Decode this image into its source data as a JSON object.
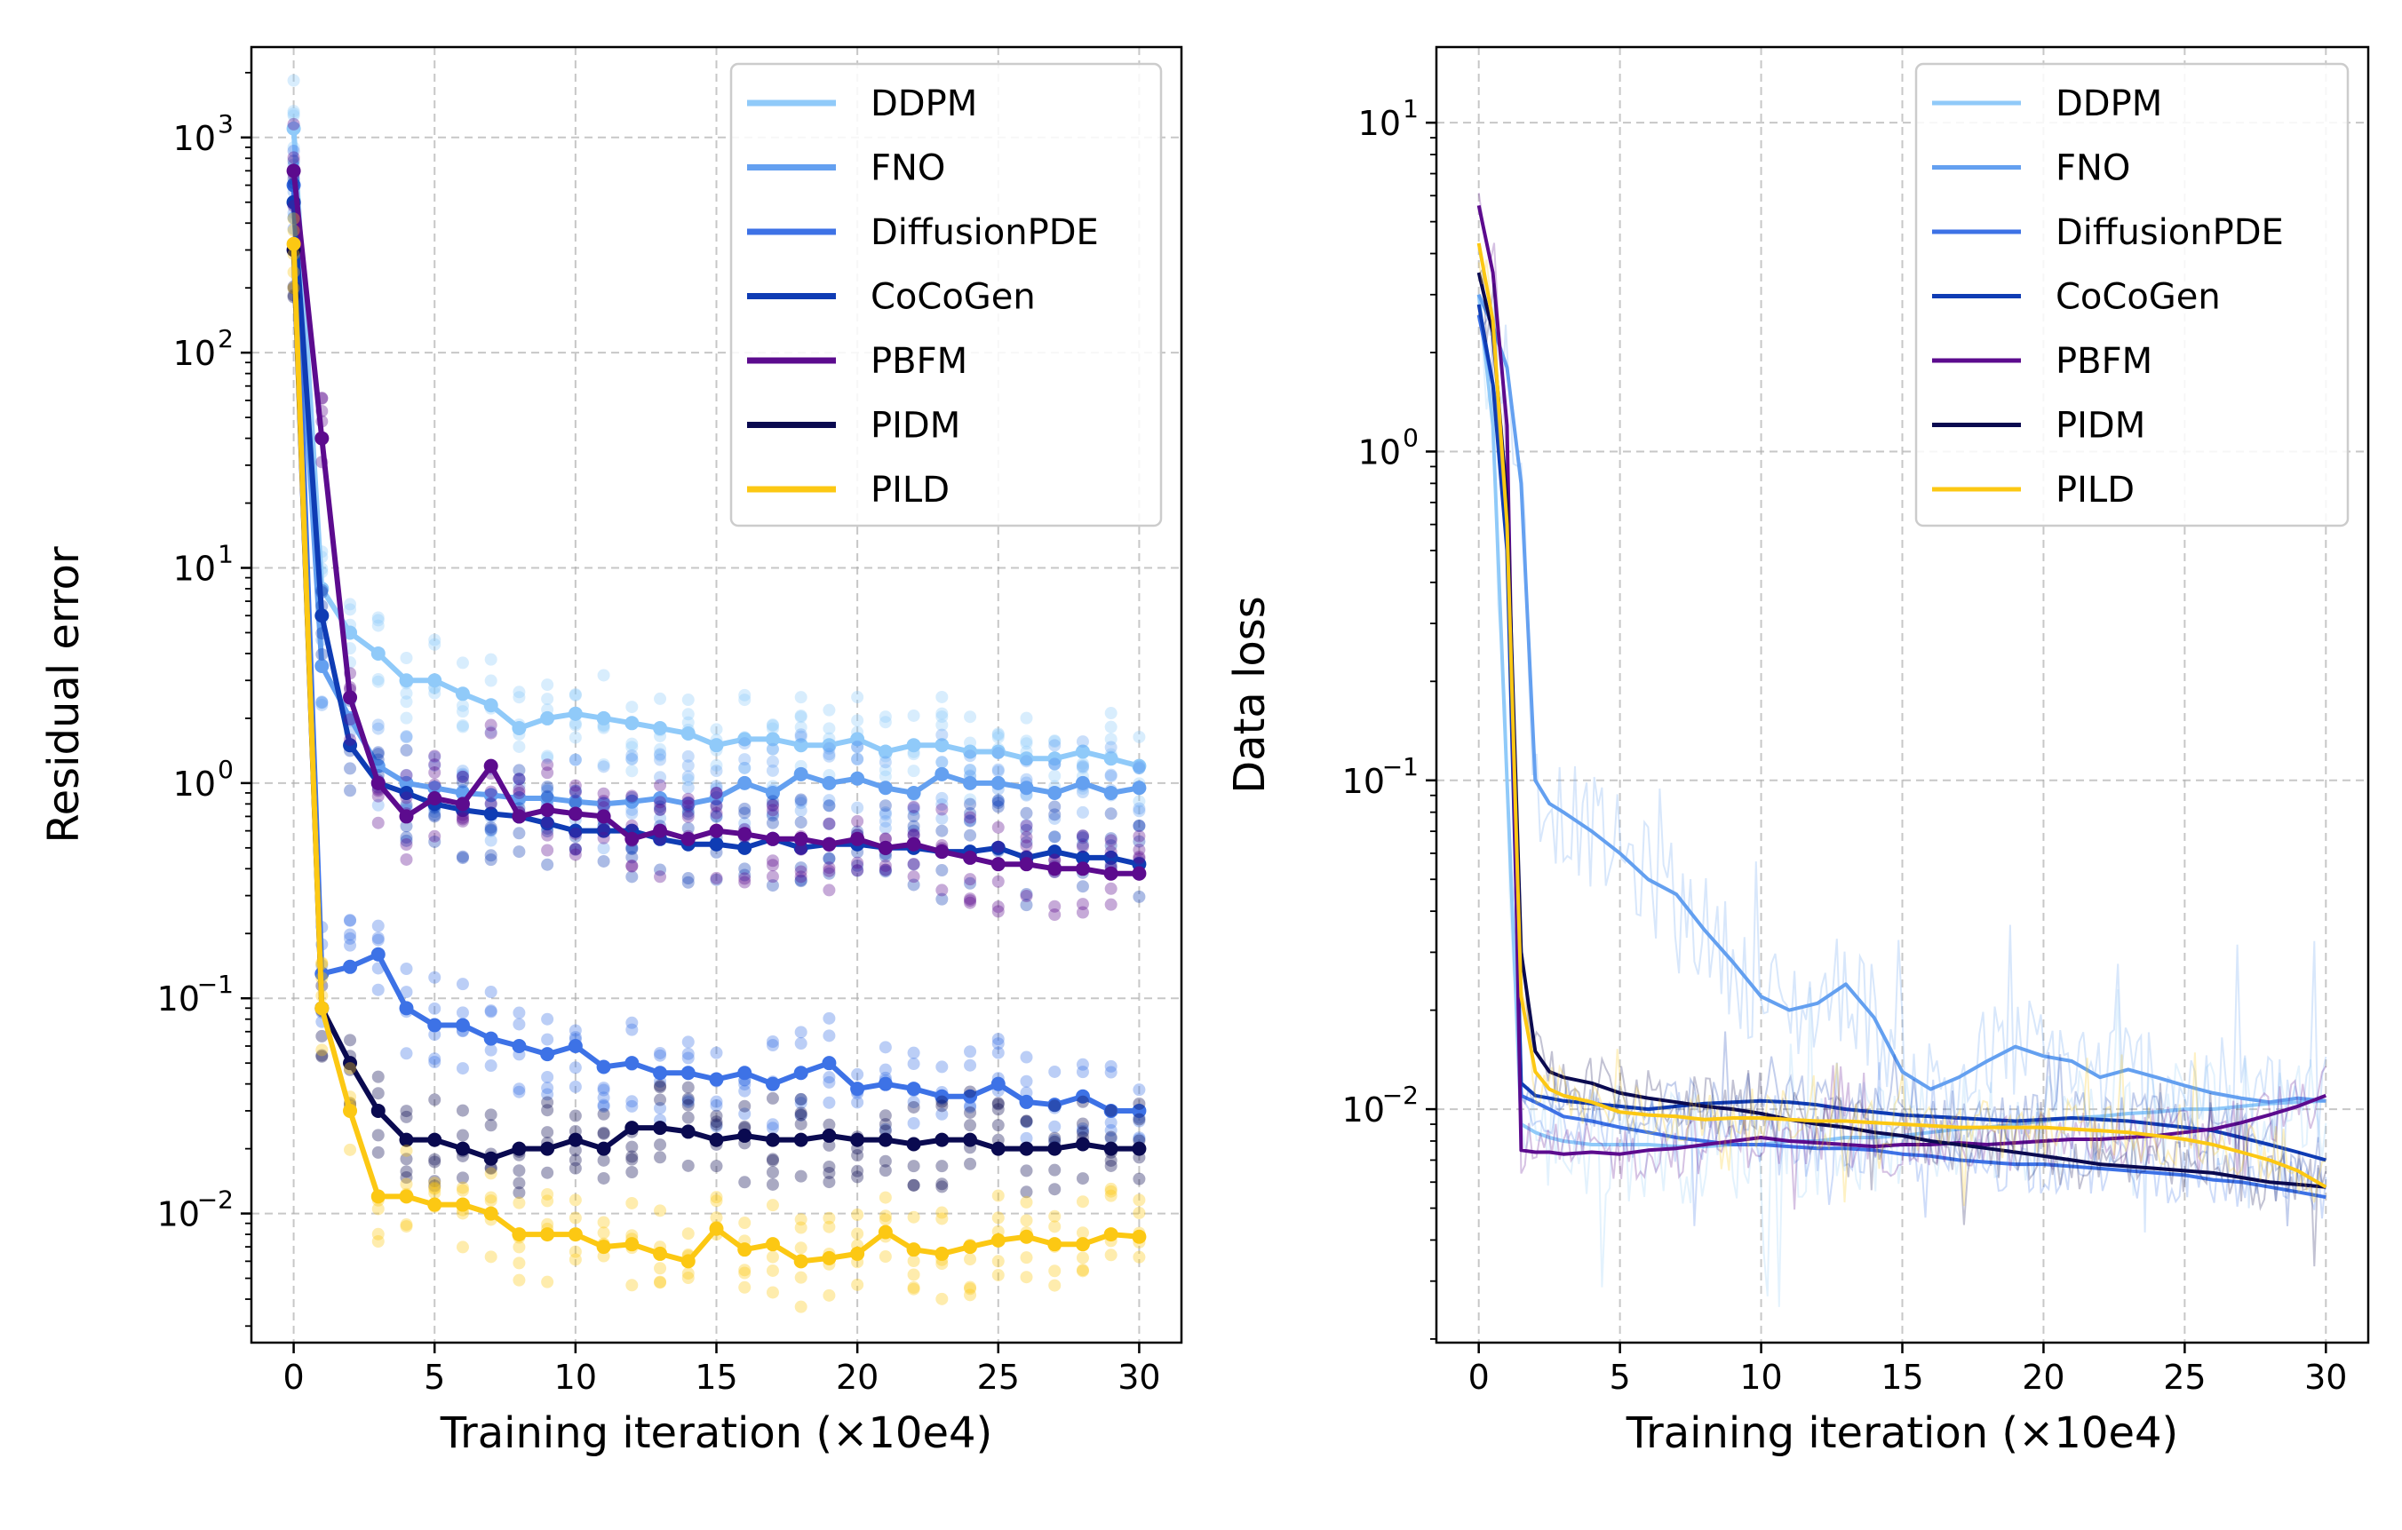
{
  "chart_data": [
    {
      "type": "line",
      "id": "residual",
      "title": "",
      "xlabel": "Training iteration (×10e4)",
      "ylabel": "Residual error",
      "yscale": "log",
      "xlim": [
        -1.5,
        31.5
      ],
      "ylim_exp": [
        -2.6,
        3.42
      ],
      "xticks": [
        0,
        5,
        10,
        15,
        20,
        25,
        30
      ],
      "xtick_labels": [
        "0",
        "5",
        "10",
        "15",
        "20",
        "25",
        "30"
      ],
      "ytick_exps": [
        -2,
        -1,
        0,
        1,
        2,
        3
      ],
      "ytick_labels": [
        "10",
        "10",
        "10",
        "10",
        "10",
        "10"
      ],
      "ytick_sups": [
        "−2",
        "−1",
        "0",
        "1",
        "2",
        "3"
      ],
      "grid": true,
      "legend": "top-right",
      "x": [
        0,
        1,
        2,
        3,
        4,
        5,
        6,
        7,
        8,
        9,
        10,
        11,
        12,
        13,
        14,
        15,
        16,
        17,
        18,
        19,
        20,
        21,
        22,
        23,
        24,
        25,
        26,
        27,
        28,
        29,
        30
      ],
      "series": [
        {
          "name": "DDPM",
          "color": "#90CAF9",
          "values": [
            1100,
            8,
            5,
            4,
            3,
            3,
            2.6,
            2.3,
            1.8,
            2,
            2.1,
            2,
            1.9,
            1.8,
            1.7,
            1.5,
            1.6,
            1.6,
            1.5,
            1.5,
            1.6,
            1.4,
            1.5,
            1.5,
            1.4,
            1.4,
            1.3,
            1.3,
            1.4,
            1.3,
            1.2
          ]
        },
        {
          "name": "FNO",
          "color": "#64A0F0",
          "values": [
            500,
            3.5,
            2,
            1.2,
            1,
            0.95,
            0.9,
            0.88,
            0.85,
            0.85,
            0.82,
            0.8,
            0.82,
            0.85,
            0.8,
            0.85,
            1,
            0.9,
            1.1,
            1,
            1.05,
            0.95,
            0.9,
            1.1,
            1,
            1,
            0.95,
            0.9,
            1,
            0.9,
            0.95
          ]
        },
        {
          "name": "DiffusionPDE",
          "color": "#3D72E6",
          "values": [
            600,
            0.13,
            0.14,
            0.16,
            0.09,
            0.075,
            0.075,
            0.065,
            0.06,
            0.055,
            0.06,
            0.048,
            0.05,
            0.045,
            0.045,
            0.042,
            0.045,
            0.04,
            0.045,
            0.05,
            0.038,
            0.04,
            0.038,
            0.035,
            0.035,
            0.04,
            0.033,
            0.032,
            0.035,
            0.03,
            0.03
          ]
        },
        {
          "name": "CoCoGen",
          "color": "#0F3CB4",
          "values": [
            500,
            6,
            1.5,
            1,
            0.9,
            0.8,
            0.75,
            0.72,
            0.7,
            0.65,
            0.6,
            0.6,
            0.6,
            0.55,
            0.52,
            0.52,
            0.5,
            0.55,
            0.5,
            0.52,
            0.52,
            0.5,
            0.5,
            0.48,
            0.48,
            0.5,
            0.45,
            0.48,
            0.45,
            0.45,
            0.42
          ]
        },
        {
          "name": "PBFM",
          "color": "#5C0B8E",
          "values": [
            700,
            40,
            2.5,
            1,
            0.7,
            0.85,
            0.8,
            1.2,
            0.7,
            0.75,
            0.72,
            0.7,
            0.55,
            0.6,
            0.55,
            0.6,
            0.58,
            0.55,
            0.55,
            0.52,
            0.55,
            0.5,
            0.52,
            0.48,
            0.45,
            0.42,
            0.42,
            0.4,
            0.4,
            0.38,
            0.38
          ]
        },
        {
          "name": "PIDM",
          "color": "#0A0A50",
          "values": [
            300,
            0.09,
            0.05,
            0.03,
            0.022,
            0.022,
            0.02,
            0.018,
            0.02,
            0.02,
            0.022,
            0.02,
            0.025,
            0.025,
            0.024,
            0.022,
            0.023,
            0.022,
            0.022,
            0.023,
            0.022,
            0.022,
            0.021,
            0.022,
            0.022,
            0.02,
            0.02,
            0.02,
            0.021,
            0.02,
            0.02
          ]
        },
        {
          "name": "PILD",
          "color": "#FCC813",
          "values": [
            320,
            0.09,
            0.03,
            0.012,
            0.012,
            0.011,
            0.011,
            0.01,
            0.008,
            0.008,
            0.008,
            0.007,
            0.0072,
            0.0065,
            0.006,
            0.0085,
            0.0068,
            0.0072,
            0.006,
            0.0062,
            0.0065,
            0.0082,
            0.0068,
            0.0065,
            0.007,
            0.0075,
            0.0078,
            0.0072,
            0.0072,
            0.008,
            0.0078
          ]
        }
      ]
    },
    {
      "type": "line",
      "id": "dataloss",
      "title": "",
      "xlabel": "Training iteration (×10e4)",
      "ylabel": "Data loss",
      "yscale": "log",
      "xlim": [
        -1.5,
        31.5
      ],
      "ylim_exp": [
        -2.71,
        1.23
      ],
      "xticks": [
        0,
        5,
        10,
        15,
        20,
        25,
        30
      ],
      "xtick_labels": [
        "0",
        "5",
        "10",
        "15",
        "20",
        "25",
        "30"
      ],
      "ytick_exps": [
        -2,
        -1,
        0,
        1
      ],
      "ytick_labels": [
        "10",
        "10",
        "10",
        "10"
      ],
      "ytick_sups": [
        "−2",
        "−1",
        "0",
        "1"
      ],
      "grid": true,
      "legend": "top-right",
      "x": [
        0,
        0.5,
        1,
        1.5,
        2,
        2.5,
        3,
        4,
        5,
        6,
        7,
        8,
        9,
        10,
        11,
        12,
        13,
        14,
        15,
        16,
        17,
        18,
        19,
        20,
        21,
        22,
        23,
        24,
        25,
        26,
        27,
        28,
        29,
        30
      ],
      "series": [
        {
          "name": "DDPM",
          "color": "#90CAF9",
          "values": [
            3,
            1.2,
            0.1,
            0.009,
            0.0085,
            0.0082,
            0.008,
            0.0078,
            0.0078,
            0.0078,
            0.0077,
            0.0077,
            0.0078,
            0.0078,
            0.008,
            0.008,
            0.0082,
            0.0082,
            0.0083,
            0.0085,
            0.0087,
            0.0088,
            0.009,
            0.0092,
            0.0094,
            0.0095,
            0.0097,
            0.0098,
            0.01,
            0.01,
            0.0102,
            0.0104,
            0.0105,
            0.0106
          ]
        },
        {
          "name": "FNO",
          "color": "#64A0F0",
          "values": [
            3,
            2.4,
            1.8,
            0.8,
            0.1,
            0.085,
            0.08,
            0.07,
            0.06,
            0.05,
            0.045,
            0.035,
            0.028,
            0.022,
            0.02,
            0.021,
            0.024,
            0.019,
            0.013,
            0.0115,
            0.0125,
            0.014,
            0.0155,
            0.0145,
            0.014,
            0.0125,
            0.0132,
            0.0125,
            0.0118,
            0.0112,
            0.0108,
            0.0105,
            0.0108,
            0.0106
          ]
        },
        {
          "name": "DiffusionPDE",
          "color": "#3D72E6",
          "values": [
            2.6,
            1.6,
            0.8,
            0.011,
            0.0105,
            0.01,
            0.0095,
            0.0092,
            0.0088,
            0.0085,
            0.0082,
            0.008,
            0.0078,
            0.0078,
            0.0077,
            0.0076,
            0.0076,
            0.0075,
            0.0073,
            0.0072,
            0.007,
            0.0069,
            0.0068,
            0.0068,
            0.0067,
            0.0066,
            0.0065,
            0.0064,
            0.0063,
            0.0061,
            0.006,
            0.0058,
            0.0056,
            0.0054
          ]
        },
        {
          "name": "CoCoGen",
          "color": "#0F3CB4",
          "values": [
            2.8,
            1.6,
            0.5,
            0.012,
            0.011,
            0.0108,
            0.0106,
            0.0104,
            0.0102,
            0.01,
            0.0102,
            0.0104,
            0.0105,
            0.0106,
            0.0105,
            0.0103,
            0.01,
            0.0098,
            0.0096,
            0.0095,
            0.0094,
            0.0093,
            0.0092,
            0.0093,
            0.0094,
            0.0093,
            0.0092,
            0.009,
            0.0088,
            0.0086,
            0.0082,
            0.0078,
            0.0074,
            0.007
          ]
        },
        {
          "name": "PBFM",
          "color": "#5C0B8E",
          "values": [
            5.6,
            3.5,
            1.2,
            0.0075,
            0.0074,
            0.0074,
            0.0073,
            0.0074,
            0.0073,
            0.0075,
            0.0076,
            0.0078,
            0.008,
            0.0082,
            0.008,
            0.0079,
            0.0078,
            0.0077,
            0.0078,
            0.0078,
            0.0079,
            0.0078,
            0.0079,
            0.008,
            0.0081,
            0.0081,
            0.0082,
            0.0083,
            0.0085,
            0.0087,
            0.0091,
            0.0096,
            0.0102,
            0.011
          ]
        },
        {
          "name": "PIDM",
          "color": "#0A0A50",
          "values": [
            3.5,
            2.3,
            0.7,
            0.03,
            0.015,
            0.013,
            0.0125,
            0.012,
            0.0112,
            0.0108,
            0.0105,
            0.0102,
            0.01,
            0.0097,
            0.0093,
            0.009,
            0.0088,
            0.0085,
            0.0083,
            0.008,
            0.0078,
            0.0076,
            0.0074,
            0.0072,
            0.007,
            0.0068,
            0.0067,
            0.0066,
            0.0065,
            0.0064,
            0.0062,
            0.006,
            0.0059,
            0.0058
          ]
        },
        {
          "name": "PILD",
          "color": "#FCC813",
          "values": [
            4.3,
            2.5,
            0.6,
            0.022,
            0.013,
            0.0115,
            0.011,
            0.0105,
            0.0098,
            0.0096,
            0.0095,
            0.0093,
            0.0094,
            0.0094,
            0.0093,
            0.0092,
            0.0092,
            0.0091,
            0.009,
            0.0089,
            0.0088,
            0.0088,
            0.0088,
            0.0088,
            0.0087,
            0.0086,
            0.0085,
            0.0083,
            0.0081,
            0.0078,
            0.0074,
            0.007,
            0.0065,
            0.0058
          ]
        }
      ]
    }
  ]
}
